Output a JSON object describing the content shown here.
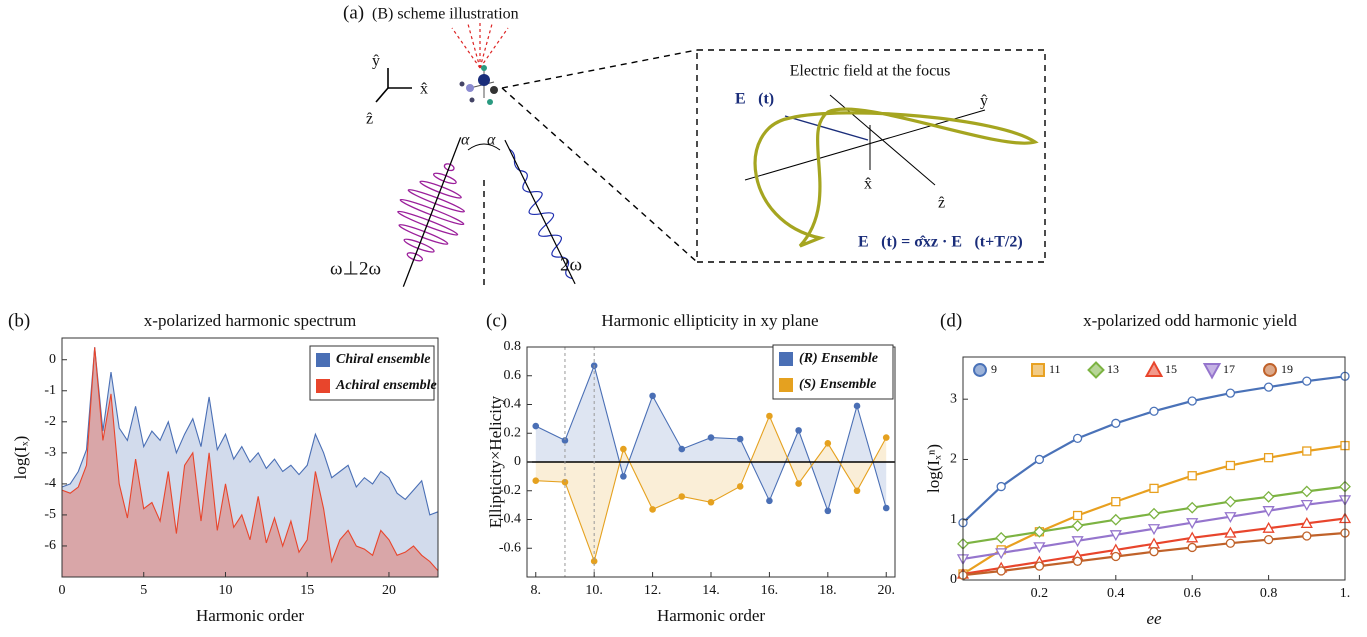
{
  "scheme": {
    "label": "(a)",
    "title": "(B) scheme illustration",
    "axes": [
      "ŷ",
      "x̂",
      "ẑ"
    ],
    "angle_labels": [
      "α",
      "α"
    ],
    "beam_labels": [
      "ω⊥2ω",
      "2ω"
    ],
    "inset_title": "Electric field at the focus",
    "field_label": "E⃗(t)",
    "inset_axes": [
      "ŷ",
      "x̂",
      "ẑ"
    ],
    "symmetry": "E⃗(t) = σ̂xz · E⃗(t+T/2)"
  },
  "chart_data": [
    {
      "type": "area",
      "label": "(b)",
      "title": "x-polarized harmonic spectrum",
      "xlabel": "Harmonic order",
      "ylabel": "log(Iₓ)",
      "xlim": [
        0,
        23
      ],
      "xticks": [
        0,
        5,
        10,
        15,
        20
      ],
      "ylim": [
        -7,
        0.7
      ],
      "yticks": [
        -6,
        -5,
        -4,
        -3,
        -2,
        -1,
        0
      ],
      "legend": "upper right",
      "x": [
        0,
        0.5,
        1,
        1.5,
        2,
        2.5,
        3,
        3.5,
        4,
        4.5,
        5,
        5.5,
        6,
        6.5,
        7,
        7.5,
        8,
        8.5,
        9,
        9.5,
        10,
        10.5,
        11,
        11.5,
        12,
        12.5,
        13,
        13.5,
        14,
        14.5,
        15,
        15.5,
        16,
        16.5,
        17,
        17.5,
        18,
        18.5,
        19,
        19.5,
        20,
        20.5,
        21,
        21.5,
        22,
        22.5,
        23
      ],
      "series": [
        {
          "name": "Chiral ensemble",
          "color": "#4a6fb5",
          "values": [
            -4.1,
            -4.0,
            -3.6,
            -2.9,
            0.4,
            -2.3,
            -0.4,
            -2.2,
            -2.6,
            -1.5,
            -2.8,
            -2.3,
            -2.6,
            -2.0,
            -3.0,
            -2.4,
            -1.9,
            -2.8,
            -1.2,
            -2.9,
            -2.4,
            -3.2,
            -2.8,
            -3.3,
            -3.0,
            -3.5,
            -3.2,
            -3.6,
            -3.4,
            -3.7,
            -3.4,
            -2.4,
            -3.0,
            -3.8,
            -3.6,
            -3.4,
            -4.1,
            -3.8,
            -4.0,
            -3.6,
            -3.8,
            -4.3,
            -4.5,
            -4.2,
            -3.9,
            -5.0,
            -4.9
          ]
        },
        {
          "name": "Achiral ensemble",
          "color": "#e8452c",
          "values": [
            -4.2,
            -4.3,
            -4.1,
            -3.4,
            0.4,
            -2.6,
            -1.1,
            -4.0,
            -5.1,
            -3.2,
            -4.8,
            -4.6,
            -5.2,
            -3.6,
            -5.6,
            -3.4,
            -3.0,
            -5.2,
            -3.0,
            -5.5,
            -4.0,
            -5.4,
            -5.0,
            -5.8,
            -4.4,
            -5.9,
            -5.1,
            -6.0,
            -5.2,
            -6.2,
            -5.8,
            -3.6,
            -4.8,
            -6.5,
            -5.8,
            -5.5,
            -6.0,
            -6.1,
            -6.3,
            -5.5,
            -5.8,
            -6.3,
            -6.2,
            -6.0,
            -6.3,
            -6.5,
            -6.8
          ]
        }
      ]
    },
    {
      "type": "line",
      "label": "(c)",
      "title": "Harmonic ellipticity in xy plane",
      "xlabel": "Harmonic order",
      "ylabel": "Ellipticity×Helicity",
      "xlim": [
        7.7,
        20.3
      ],
      "xticks": [
        {
          "value": 8,
          "label": "8."
        },
        {
          "value": 10,
          "label": "10."
        },
        {
          "value": 12,
          "label": "12."
        },
        {
          "value": 14,
          "label": "14."
        },
        {
          "value": 16,
          "label": "16."
        },
        {
          "value": 18,
          "label": "18."
        },
        {
          "value": 20,
          "label": "20."
        }
      ],
      "ylim": [
        -0.8,
        0.8
      ],
      "yticks": [
        -0.6,
        -0.4,
        -0.2,
        0,
        0.2,
        0.4,
        0.6,
        0.8
      ],
      "zero_line": true,
      "vlines": [
        9,
        10
      ],
      "legend": "upper right",
      "x": [
        8,
        9,
        10,
        11,
        12,
        13,
        14,
        15,
        16,
        17,
        18,
        19,
        20
      ],
      "series": [
        {
          "name": "(R) Ensemble",
          "color": "#4a6fb5",
          "values": [
            0.25,
            0.15,
            0.67,
            -0.1,
            0.46,
            0.09,
            0.17,
            0.16,
            -0.27,
            0.22,
            -0.34,
            0.39,
            -0.32
          ]
        },
        {
          "name": "(S) Ensemble",
          "color": "#e5a11f",
          "values": [
            -0.13,
            -0.14,
            -0.69,
            0.09,
            -0.33,
            -0.24,
            -0.28,
            -0.17,
            0.32,
            -0.15,
            0.13,
            -0.2,
            0.17
          ]
        }
      ]
    },
    {
      "type": "line",
      "label": "(d)",
      "title": "x-polarized odd harmonic yield",
      "xlabel": "ee",
      "ylabel": "log(Iₓⁿ)",
      "xlim": [
        0,
        1
      ],
      "xticks": [
        0.2,
        0.4,
        0.6,
        0.8,
        {
          "value": 1,
          "label": "1."
        }
      ],
      "ylim": [
        0,
        3.7
      ],
      "yticks": [
        0,
        1,
        2,
        3
      ],
      "legend": "top",
      "x": [
        0,
        0.1,
        0.2,
        0.3,
        0.4,
        0.5,
        0.6,
        0.7,
        0.8,
        0.9,
        1
      ],
      "series": [
        {
          "name": "9",
          "color": "#4a72b8",
          "marker": "circle",
          "values": [
            0.95,
            1.55,
            2.0,
            2.35,
            2.6,
            2.8,
            2.97,
            3.1,
            3.2,
            3.3,
            3.38
          ]
        },
        {
          "name": "11",
          "color": "#e8a020",
          "marker": "square",
          "values": [
            0.1,
            0.5,
            0.8,
            1.07,
            1.3,
            1.52,
            1.73,
            1.9,
            2.03,
            2.14,
            2.23
          ]
        },
        {
          "name": "13",
          "color": "#7cb342",
          "marker": "diamond",
          "values": [
            0.6,
            0.7,
            0.8,
            0.9,
            1.0,
            1.1,
            1.2,
            1.3,
            1.38,
            1.47,
            1.55
          ]
        },
        {
          "name": "15",
          "color": "#e8452c",
          "marker": "triangle-up",
          "values": [
            0.1,
            0.2,
            0.3,
            0.4,
            0.5,
            0.6,
            0.7,
            0.78,
            0.86,
            0.94,
            1.02
          ]
        },
        {
          "name": "17",
          "color": "#9575cd",
          "marker": "triangle-down",
          "values": [
            0.35,
            0.45,
            0.55,
            0.65,
            0.75,
            0.85,
            0.95,
            1.05,
            1.15,
            1.25,
            1.33
          ]
        },
        {
          "name": "19",
          "color": "#c0622a",
          "marker": "circle",
          "values": [
            0.08,
            0.15,
            0.23,
            0.31,
            0.39,
            0.47,
            0.54,
            0.61,
            0.67,
            0.73,
            0.78
          ]
        }
      ]
    }
  ]
}
